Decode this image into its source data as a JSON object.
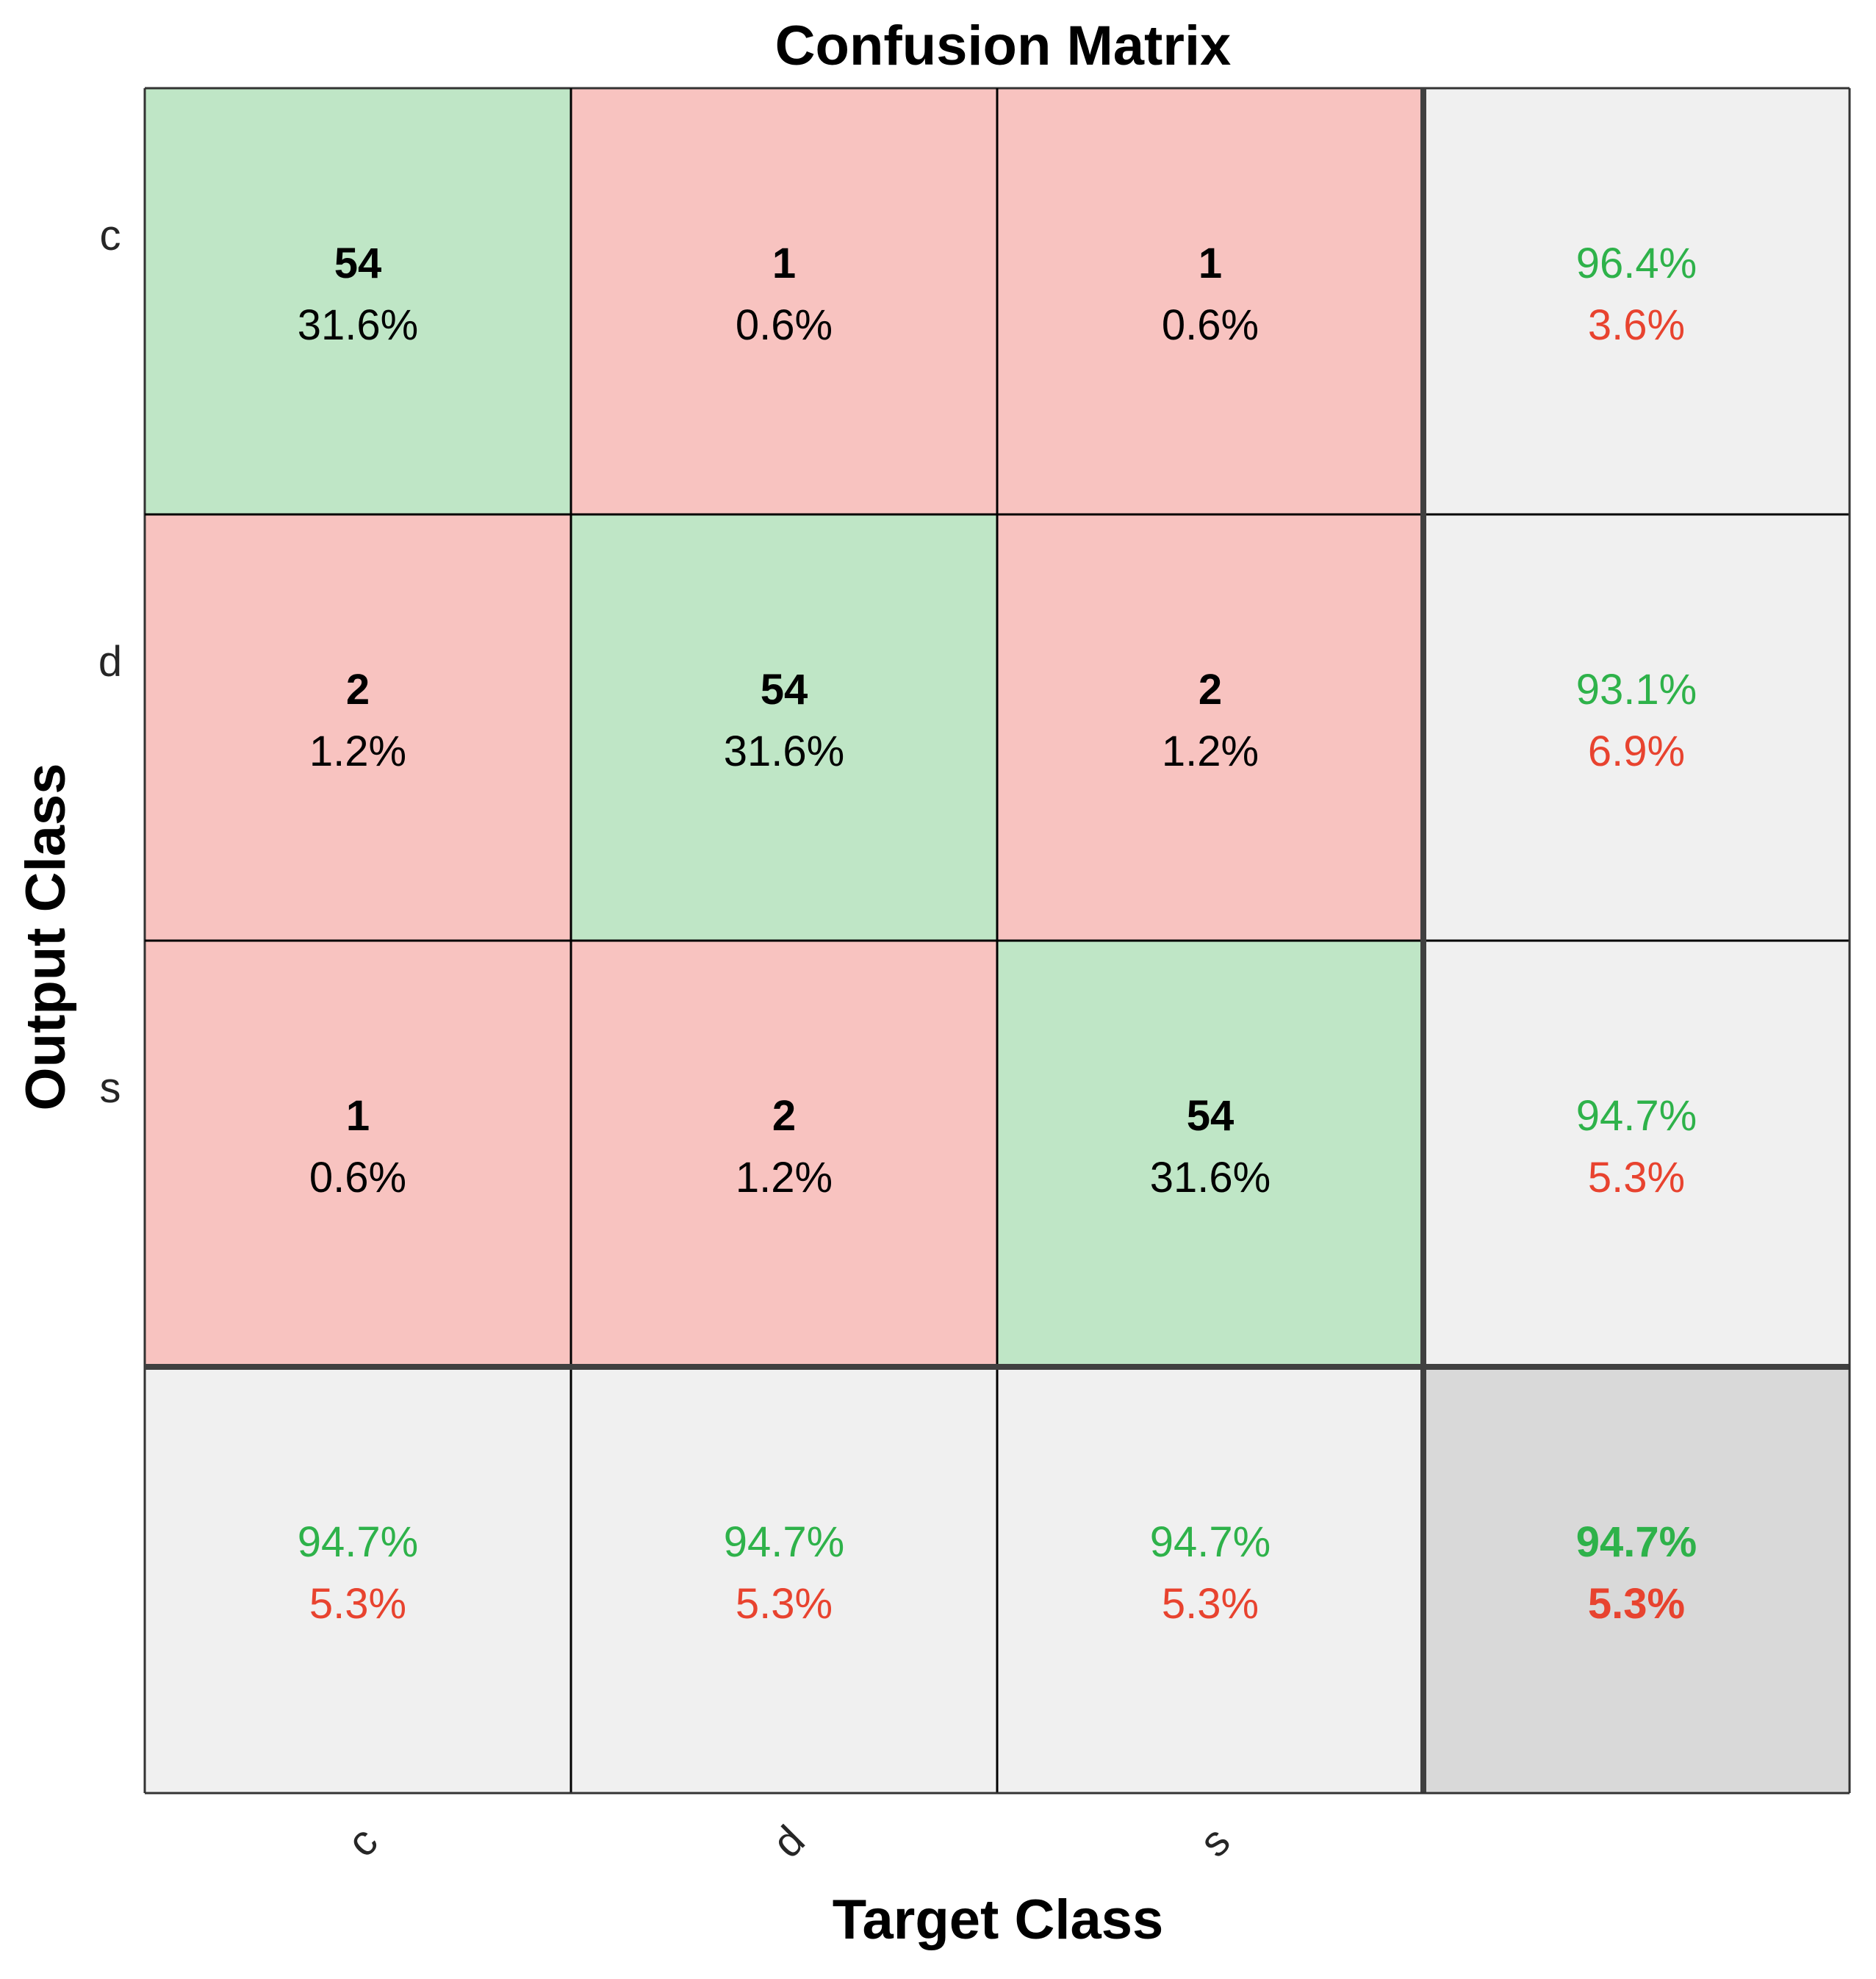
{
  "chart_data": {
    "type": "heatmap",
    "title": "Confusion Matrix",
    "xlabel": "Target Class",
    "ylabel": "Output Class",
    "classes": [
      "c",
      "d",
      "s"
    ],
    "matrix": [
      [
        {
          "count": "54",
          "pct": "31.6%"
        },
        {
          "count": "1",
          "pct": "0.6%"
        },
        {
          "count": "1",
          "pct": "0.6%"
        }
      ],
      [
        {
          "count": "2",
          "pct": "1.2%"
        },
        {
          "count": "54",
          "pct": "31.6%"
        },
        {
          "count": "2",
          "pct": "1.2%"
        }
      ],
      [
        {
          "count": "1",
          "pct": "0.6%"
        },
        {
          "count": "2",
          "pct": "1.2%"
        },
        {
          "count": "54",
          "pct": "31.6%"
        }
      ]
    ],
    "row_summary": [
      {
        "correct": "96.4%",
        "error": "3.6%"
      },
      {
        "correct": "93.1%",
        "error": "6.9%"
      },
      {
        "correct": "94.7%",
        "error": "5.3%"
      }
    ],
    "col_summary": [
      {
        "correct": "94.7%",
        "error": "5.3%"
      },
      {
        "correct": "94.7%",
        "error": "5.3%"
      },
      {
        "correct": "94.7%",
        "error": "5.3%"
      }
    ],
    "overall": {
      "correct": "94.7%",
      "error": "5.3%"
    },
    "colors": {
      "diagonal": "#bfe6c6",
      "off_diagonal": "#f8c3c0",
      "summary": "#f0f0f0",
      "overall": "#d9d9d9",
      "correct_text": "#2eb24a",
      "error_text": "#e8432f"
    }
  }
}
